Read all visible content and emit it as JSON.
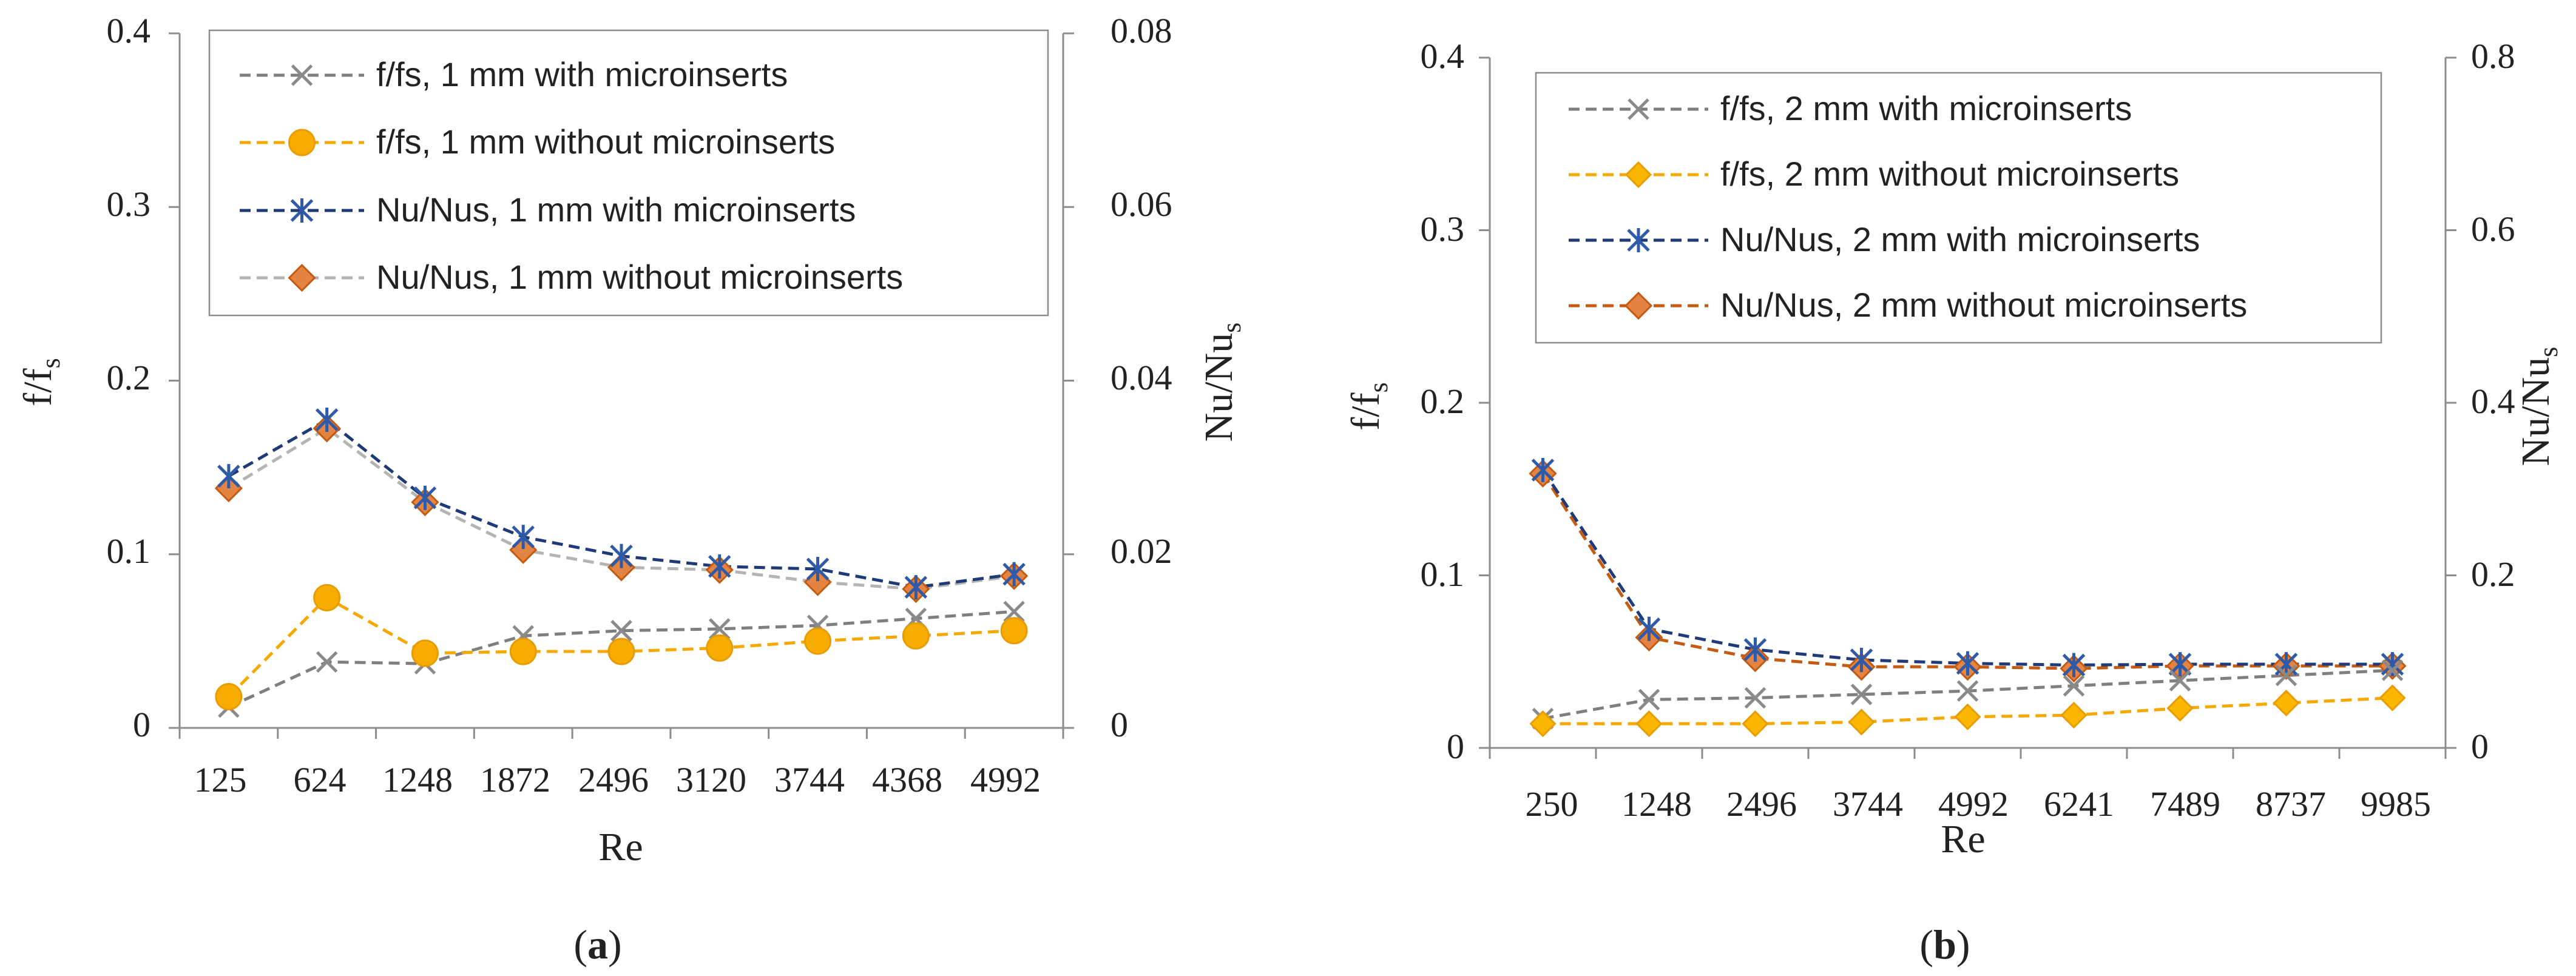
{
  "colors": {
    "gray_series": "#7f7f7f",
    "orange_series": "#f5a800",
    "navy_series": "#1f3a78",
    "darkorange_series": "#e07b39",
    "marker_orange_fill": "#e48443",
    "marker_orange_edge": "#c55a11",
    "axis": "#8c8c8c"
  },
  "charts": [
    {
      "caption": {
        "open": "(",
        "letter": "a",
        "close": ")"
      },
      "xlabel": "Re",
      "ylabel_left": {
        "base": "f/f",
        "sub": "s"
      },
      "ylabel_right": {
        "base": "Nu/Nu",
        "sub": "s"
      },
      "left_ticks": [
        "0",
        "0.1",
        "0.2",
        "0.3",
        "0.4"
      ],
      "right_ticks": [
        "0",
        "0.02",
        "0.04",
        "0.06",
        "0.08"
      ],
      "legend": [
        "f/fs, 1 mm with microinserts",
        "f/fs, 1 mm without microinserts",
        "Nu/Nus, 1 mm with microinserts",
        "Nu/Nus, 1 mm without microinserts"
      ]
    },
    {
      "caption": {
        "open": "(",
        "letter": "b",
        "close": ")"
      },
      "xlabel": "Re",
      "ylabel_left": {
        "base": "f/f",
        "sub": "s"
      },
      "ylabel_right": {
        "base": "Nu/Nu",
        "sub": "s"
      },
      "left_ticks": [
        "0",
        "0.1",
        "0.2",
        "0.3",
        "0.4"
      ],
      "right_ticks": [
        "0",
        "0.2",
        "0.4",
        "0.6",
        "0.8"
      ],
      "legend": [
        "f/fs, 2 mm with microinserts",
        "f/fs, 2 mm without microinserts",
        "Nu/Nus, 2 mm with microinserts",
        "Nu/Nus, 2 mm without microinserts"
      ]
    }
  ],
  "chart_data": [
    {
      "type": "line",
      "categories": [
        "125",
        "624",
        "1248",
        "1872",
        "2496",
        "3120",
        "3744",
        "4368",
        "4992"
      ],
      "xlabel": "Re",
      "ylabel": "f/fs",
      "ylabel_right": "Nu/Nus",
      "ylim": [
        0,
        0.4
      ],
      "ylim_right": [
        0,
        0.08
      ],
      "grid": false,
      "legend_position": "top",
      "series": [
        {
          "name": "f/fs, 1 mm with microinserts",
          "axis": "left",
          "marker": "x",
          "line": "gray",
          "values": [
            0.012,
            0.038,
            0.037,
            0.053,
            0.056,
            0.057,
            0.059,
            0.063,
            0.067
          ]
        },
        {
          "name": "f/fs, 1 mm without microinserts",
          "axis": "left",
          "marker": "circle",
          "line": "orange",
          "values": [
            0.018,
            0.075,
            0.043,
            0.044,
            0.044,
            0.046,
            0.05,
            0.053,
            0.056
          ]
        },
        {
          "name": "Nu/Nus, 1 mm with microinserts",
          "axis": "right",
          "marker": "asterisk",
          "line": "navy",
          "values": [
            0.029,
            0.0355,
            0.0265,
            0.022,
            0.0198,
            0.0186,
            0.0183,
            0.0162,
            0.0177
          ]
        },
        {
          "name": "Nu/Nus, 1 mm without microinserts",
          "axis": "right",
          "marker": "diamond",
          "line": "lightgray",
          "values": [
            0.0276,
            0.0345,
            0.026,
            0.0205,
            0.0185,
            0.0182,
            0.0168,
            0.016,
            0.0175
          ]
        }
      ]
    },
    {
      "type": "line",
      "categories": [
        "250",
        "1248",
        "2496",
        "3744",
        "4992",
        "6241",
        "7489",
        "8737",
        "9985"
      ],
      "xlabel": "Re",
      "ylabel": "f/fs",
      "ylabel_right": "Nu/Nus",
      "ylim": [
        0,
        0.4
      ],
      "ylim_right": [
        0,
        0.8
      ],
      "grid": false,
      "legend_position": "top",
      "series": [
        {
          "name": "f/fs, 2 mm with microinserts",
          "axis": "left",
          "marker": "x",
          "line": "gray",
          "values": [
            0.017,
            0.028,
            0.029,
            0.031,
            0.033,
            0.036,
            0.039,
            0.042,
            0.045
          ]
        },
        {
          "name": "f/fs, 2 mm without microinserts",
          "axis": "left",
          "marker": "diamond-yellow",
          "line": "orange",
          "values": [
            0.014,
            0.014,
            0.014,
            0.015,
            0.018,
            0.019,
            0.023,
            0.026,
            0.029
          ]
        },
        {
          "name": "Nu/Nus, 2 mm with microinserts",
          "axis": "right",
          "marker": "asterisk",
          "line": "navy",
          "values": [
            0.322,
            0.138,
            0.114,
            0.102,
            0.098,
            0.096,
            0.097,
            0.097,
            0.097
          ]
        },
        {
          "name": "Nu/Nus, 2 mm without microinserts",
          "axis": "right",
          "marker": "diamond",
          "line": "darkorange",
          "values": [
            0.318,
            0.128,
            0.104,
            0.094,
            0.094,
            0.092,
            0.095,
            0.095,
            0.095
          ]
        }
      ]
    }
  ]
}
